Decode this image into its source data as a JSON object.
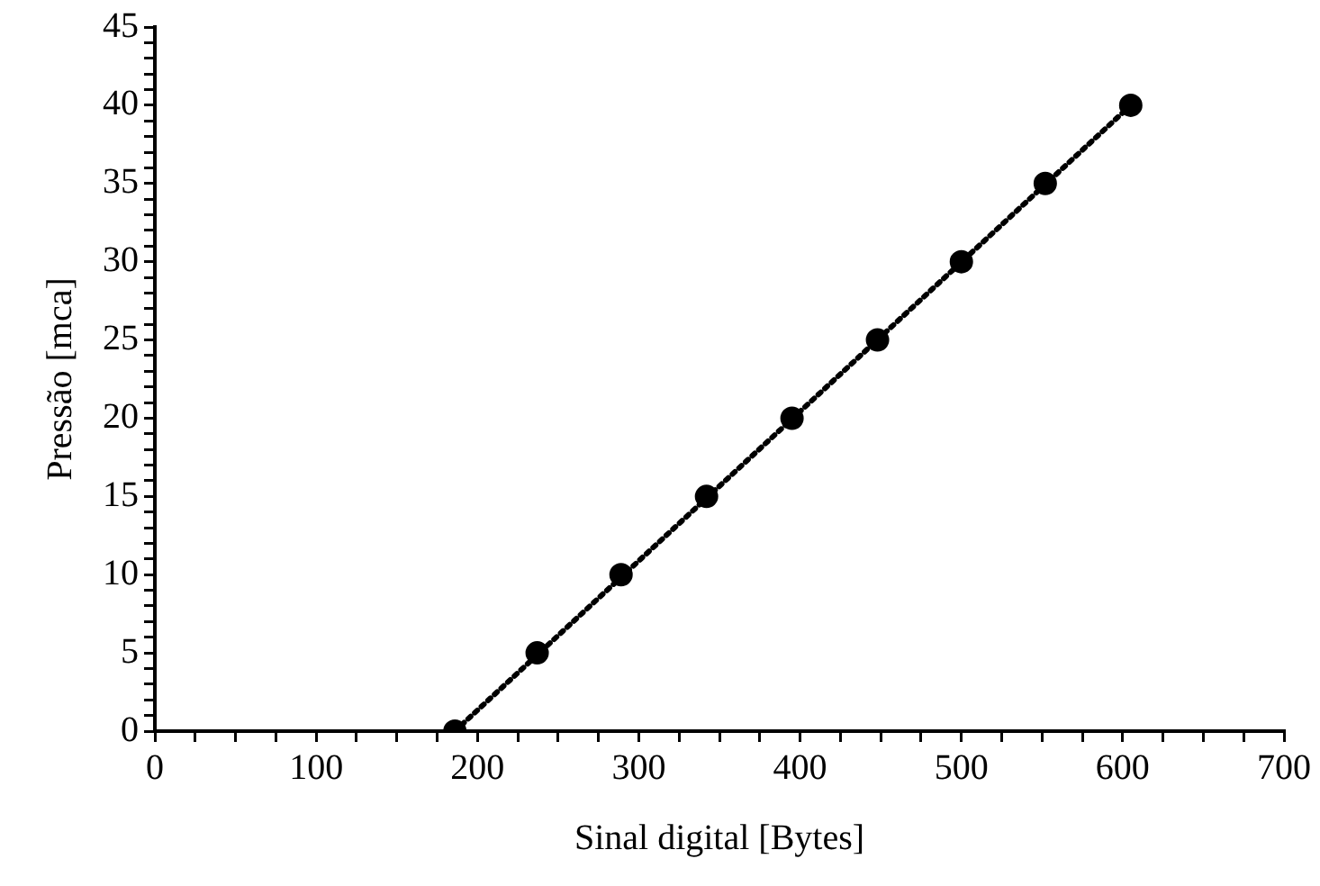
{
  "chart_data": {
    "type": "scatter",
    "xlabel": "Sinal digital [Bytes]",
    "ylabel": "Pressão [mca]",
    "series": [
      {
        "color": "#000000",
        "marker": "circle",
        "x": [
          186,
          237,
          289,
          342,
          395,
          448,
          500,
          552,
          605
        ],
        "values": [
          0,
          5,
          10,
          15,
          20,
          25,
          30,
          35,
          40
        ]
      },
      {
        "type": "line",
        "color": "#000000",
        "marker": "none",
        "line_style": "dotted",
        "x": [
          186,
          605
        ],
        "values": [
          0,
          40
        ]
      }
    ],
    "xlim": [
      0,
      700
    ],
    "xticks": [
      0,
      {
        "value": 25,
        "label": null
      },
      {
        "value": 50,
        "label": null
      },
      {
        "value": 75,
        "label": null
      },
      100,
      {
        "value": 125,
        "label": null
      },
      {
        "value": 150,
        "label": null
      },
      {
        "value": 175,
        "label": null
      },
      200,
      {
        "value": 225,
        "label": null
      },
      {
        "value": 250,
        "label": null
      },
      {
        "value": 275,
        "label": null
      },
      300,
      {
        "value": 325,
        "label": null
      },
      {
        "value": 350,
        "label": null
      },
      {
        "value": 375,
        "label": null
      },
      400,
      {
        "value": 425,
        "label": null
      },
      {
        "value": 450,
        "label": null
      },
      {
        "value": 475,
        "label": null
      },
      500,
      {
        "value": 525,
        "label": null
      },
      {
        "value": 550,
        "label": null
      },
      {
        "value": 575,
        "label": null
      },
      600,
      {
        "value": 625,
        "label": null
      },
      {
        "value": 650,
        "label": null
      },
      {
        "value": 675,
        "label": null
      },
      700
    ],
    "ylim": [
      0,
      45
    ],
    "yticks": [
      0,
      {
        "value": 1,
        "label": null
      },
      {
        "value": 2,
        "label": null
      },
      {
        "value": 3,
        "label": null
      },
      {
        "value": 4,
        "label": null
      },
      5,
      {
        "value": 6,
        "label": null
      },
      {
        "value": 7,
        "label": null
      },
      {
        "value": 8,
        "label": null
      },
      {
        "value": 9,
        "label": null
      },
      10,
      {
        "value": 11,
        "label": null
      },
      {
        "value": 12,
        "label": null
      },
      {
        "value": 13,
        "label": null
      },
      {
        "value": 14,
        "label": null
      },
      15,
      {
        "value": 16,
        "label": null
      },
      {
        "value": 17,
        "label": null
      },
      {
        "value": 18,
        "label": null
      },
      {
        "value": 19,
        "label": null
      },
      20,
      {
        "value": 21,
        "label": null
      },
      {
        "value": 22,
        "label": null
      },
      {
        "value": 23,
        "label": null
      },
      {
        "value": 24,
        "label": null
      },
      25,
      {
        "value": 26,
        "label": null
      },
      {
        "value": 27,
        "label": null
      },
      {
        "value": 28,
        "label": null
      },
      {
        "value": 29,
        "label": null
      },
      30,
      {
        "value": 31,
        "label": null
      },
      {
        "value": 32,
        "label": null
      },
      {
        "value": 33,
        "label": null
      },
      {
        "value": 34,
        "label": null
      },
      35,
      {
        "value": 36,
        "label": null
      },
      {
        "value": 37,
        "label": null
      },
      {
        "value": 38,
        "label": null
      },
      {
        "value": 39,
        "label": null
      },
      40,
      {
        "value": 41,
        "label": null
      },
      {
        "value": 42,
        "label": null
      },
      {
        "value": 43,
        "label": null
      },
      {
        "value": 44,
        "label": null
      },
      45
    ],
    "grid": false,
    "legend": false
  }
}
